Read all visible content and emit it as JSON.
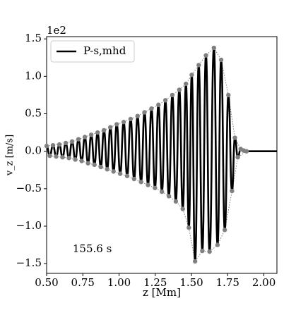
{
  "chart_data": {
    "type": "line",
    "offset_label": "1e2",
    "xlabel": "z [Mm]",
    "ylabel": "v_z [m/s]",
    "annotation": {
      "text": "155.6 s",
      "x": 0.68,
      "y": -1.31
    },
    "legend": "upper left",
    "markers": true,
    "marker_color": "#808080",
    "envelope": true,
    "xlim": [
      0.5,
      2.09
    ],
    "ylim": [
      -1.63,
      1.53
    ],
    "xticks": [
      {
        "value": 0.5,
        "label": "0.50"
      },
      {
        "value": 0.75,
        "label": "0.75"
      },
      {
        "value": 1,
        "label": "1.00"
      },
      {
        "value": 1.25,
        "label": "1.25"
      },
      {
        "value": 1.5,
        "label": "1.50"
      },
      {
        "value": 1.75,
        "label": "1.75"
      },
      {
        "value": 2,
        "label": "2.00"
      }
    ],
    "yticks": [
      {
        "value": -1.5,
        "label": "−1.5"
      },
      {
        "value": -1,
        "label": "−1.0"
      },
      {
        "value": -0.5,
        "label": "−0.5"
      },
      {
        "value": 0,
        "label": "0.0"
      },
      {
        "value": 0.5,
        "label": "0.5"
      },
      {
        "value": 1,
        "label": "1.0"
      },
      {
        "value": 1.5,
        "label": "1.5"
      }
    ],
    "x": [
      0.5,
      0.522,
      0.544,
      0.566,
      0.588,
      0.61,
      0.632,
      0.654,
      0.676,
      0.698,
      0.72,
      0.742,
      0.764,
      0.786,
      0.808,
      0.83,
      0.852,
      0.874,
      0.896,
      0.918,
      0.94,
      0.962,
      0.984,
      1.008,
      1.032,
      1.056,
      1.08,
      1.104,
      1.128,
      1.152,
      1.176,
      1.2,
      1.224,
      1.248,
      1.272,
      1.296,
      1.32,
      1.344,
      1.368,
      1.392,
      1.416,
      1.44,
      1.462,
      1.482,
      1.502,
      1.525,
      1.55,
      1.575,
      1.6,
      1.625,
      1.655,
      1.68,
      1.705,
      1.73,
      1.755,
      1.78,
      1.8,
      1.82,
      1.84,
      1.86,
      1.88,
      2.09
    ],
    "series": [
      {
        "name": "P-s,mhd",
        "color": "#000000",
        "values": [
          0.07,
          -0.06,
          0.08,
          -0.07,
          0.09,
          -0.08,
          0.11,
          -0.09,
          0.13,
          -0.11,
          0.16,
          -0.13,
          0.19,
          -0.16,
          0.22,
          -0.18,
          0.25,
          -0.21,
          0.28,
          -0.24,
          0.32,
          -0.27,
          0.36,
          -0.3,
          0.39,
          -0.33,
          0.43,
          -0.37,
          0.47,
          -0.41,
          0.52,
          -0.45,
          0.57,
          -0.49,
          0.62,
          -0.54,
          0.68,
          -0.6,
          0.75,
          -0.67,
          0.82,
          -0.77,
          0.9,
          -1.02,
          1.02,
          -1.47,
          1.15,
          -1.33,
          1.28,
          -1.34,
          1.38,
          -1.25,
          1.22,
          -1.05,
          0.75,
          -0.53,
          0.18,
          -0.08,
          0.03,
          0.01,
          0,
          0
        ]
      }
    ]
  }
}
